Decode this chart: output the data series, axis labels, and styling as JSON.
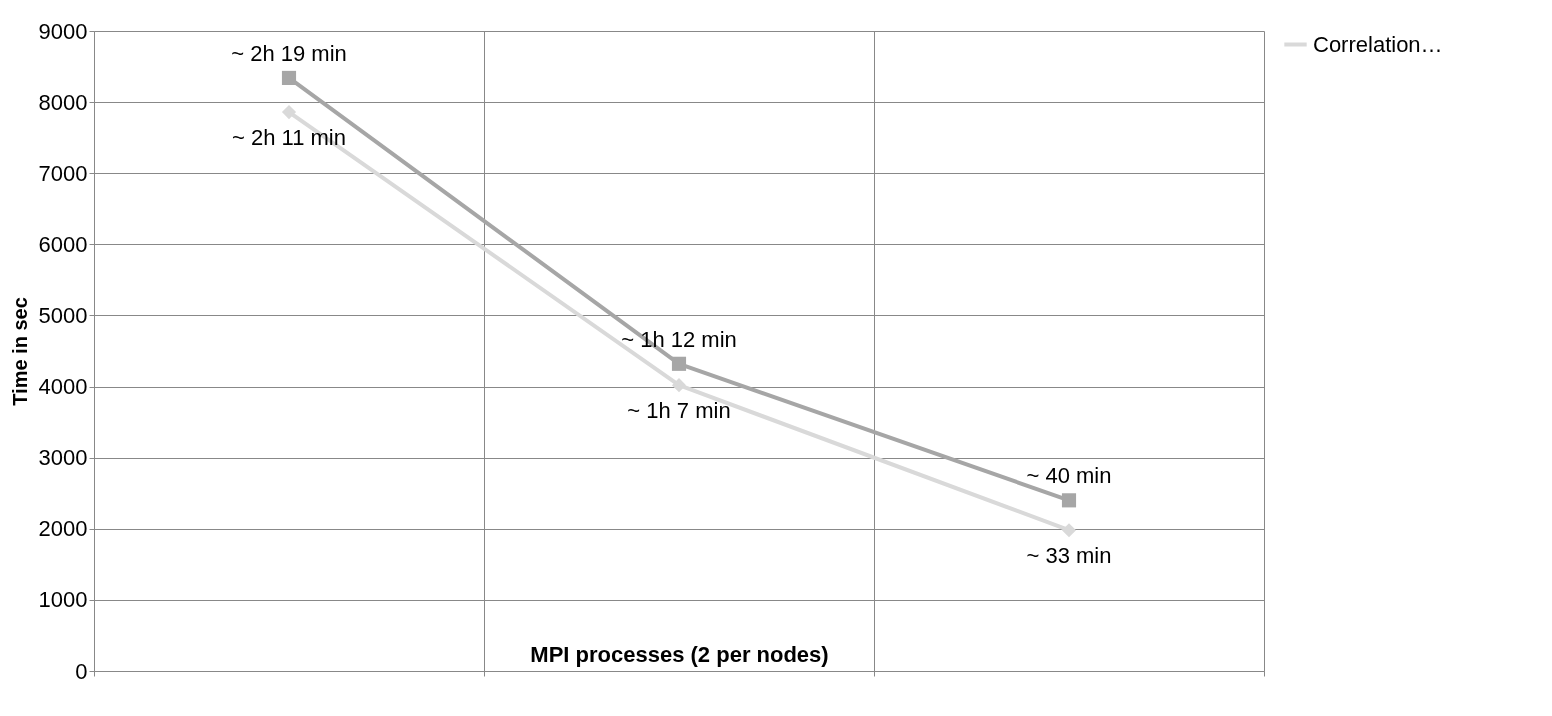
{
  "chart_data": {
    "type": "line",
    "xlabel": "MPI processes (2 per nodes)",
    "ylabel": "Time in sec",
    "categories": [
      null,
      null,
      null
    ],
    "series": [
      {
        "color": "#a6a6a6",
        "marker": "square",
        "values": [
          8340,
          4320,
          2400
        ]
      },
      {
        "name": "Correlation…",
        "color": "#d9d9d9",
        "marker": "diamond",
        "values": [
          7860,
          4020,
          1980
        ]
      }
    ],
    "ylim": [
      0,
      9000
    ],
    "yticks": [
      0,
      1000,
      2000,
      3000,
      4000,
      5000,
      6000,
      7000,
      8000,
      9000
    ],
    "grid": true,
    "legend": "right",
    "tick_labels": "y",
    "annotations": [
      {
        "text": "~ 2h 19 min",
        "y": 8340
      },
      {
        "text": "~ 2h 11 min",
        "y": 7860
      },
      {
        "text": "~ 1h 12 min",
        "y": 4320
      },
      {
        "text": "~ 1h 7 min",
        "y": 4020
      },
      {
        "text": "~ 40 min",
        "y": 2400
      },
      {
        "text": "~ 33 min",
        "y": 1980
      }
    ]
  }
}
